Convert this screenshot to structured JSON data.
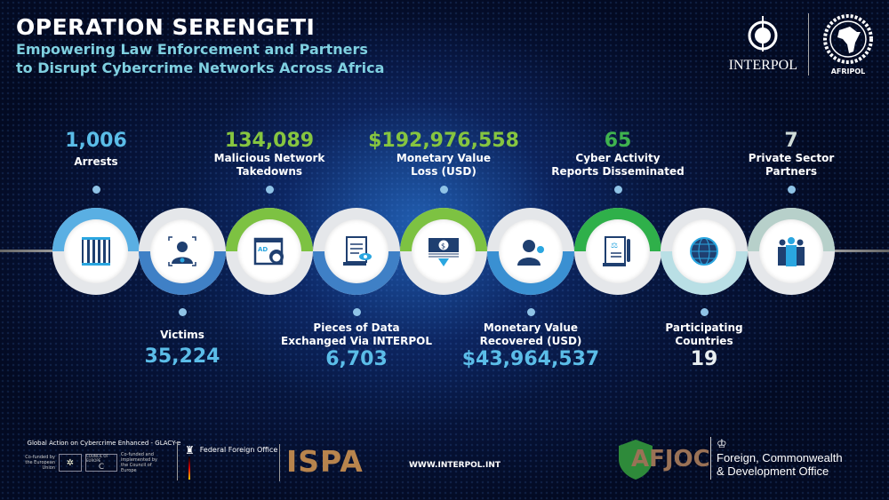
{
  "header": {
    "title": "OPERATION SERENGETI",
    "subtitle_line1": "Empowering Law Enforcement and Partners",
    "subtitle_line2": "to Disrupt Cybercrime Networks Across Africa"
  },
  "logos": {
    "interpol": "INTERPOL",
    "afripol": "AFRIPOL"
  },
  "stats_top": [
    {
      "value": "1,006",
      "label1": "Arrests",
      "label2": "",
      "color": "#5bbde8"
    },
    {
      "value": "134,089",
      "label1": "Malicious Network",
      "label2": "Takedowns",
      "color": "#86c540"
    },
    {
      "value": "$192,976,558",
      "label1": "Monetary Value",
      "label2": "Loss (USD)",
      "color": "#86c540"
    },
    {
      "value": "65",
      "label1": "Cyber Activity",
      "label2": "Reports Disseminated",
      "color": "#3fb34f"
    },
    {
      "value": "7",
      "label1": "Private Sector",
      "label2": "Partners",
      "color": "#d0dcd8"
    }
  ],
  "stats_bottom": [
    {
      "value": "35,224",
      "label1": "Victims",
      "label2": "",
      "color": "#5bbde8"
    },
    {
      "value": "6,703",
      "label1": "Pieces of Data",
      "label2": "Exchanged Via INTERPOL",
      "color": "#5bbde8"
    },
    {
      "value": "$43,964,537",
      "label1": "Monetary Value",
      "label2": "Recovered (USD)",
      "color": "#5bbde8"
    },
    {
      "value": "19",
      "label1": "Participating",
      "label2": "Countries",
      "color": "#e8eef0"
    }
  ],
  "nodes": [
    {
      "icon": "prison-bars-icon",
      "ring": "#5aafe3",
      "side": "top"
    },
    {
      "icon": "face-scan-icon",
      "ring": "#3f80c6",
      "side": "bottom"
    },
    {
      "icon": "malicious-ad-hacker-icon",
      "ring": "#7dc242",
      "side": "top"
    },
    {
      "icon": "document-eye-icon",
      "ring": "#3f80c6",
      "side": "bottom"
    },
    {
      "icon": "money-loss-icon",
      "ring": "#7dc242",
      "side": "top"
    },
    {
      "icon": "person-money-icon",
      "ring": "#3a90d2",
      "side": "bottom"
    },
    {
      "icon": "legal-document-icon",
      "ring": "#2fb04a",
      "side": "top"
    },
    {
      "icon": "globe-icon",
      "ring": "#b9dfe5",
      "side": "bottom"
    },
    {
      "icon": "team-icon",
      "ring": "#b7d0ca",
      "side": "top"
    }
  ],
  "footer": {
    "glacy": "Global Action on Cybercrime Enhanced - GLACY-e",
    "eu": "Co-funded by the European Union",
    "coe_title": "COUNCIL OF EUROPE",
    "coe": "Co-funded and implemented by the Council of Europe",
    "ffo": "Federal Foreign Office",
    "iospa": "ISPA",
    "website": "WWW.INTERPOL.INT",
    "afjoc": "AFJOC",
    "fcdo1": "Foreign, Commonwealth",
    "fcdo2": "& Development Office"
  }
}
